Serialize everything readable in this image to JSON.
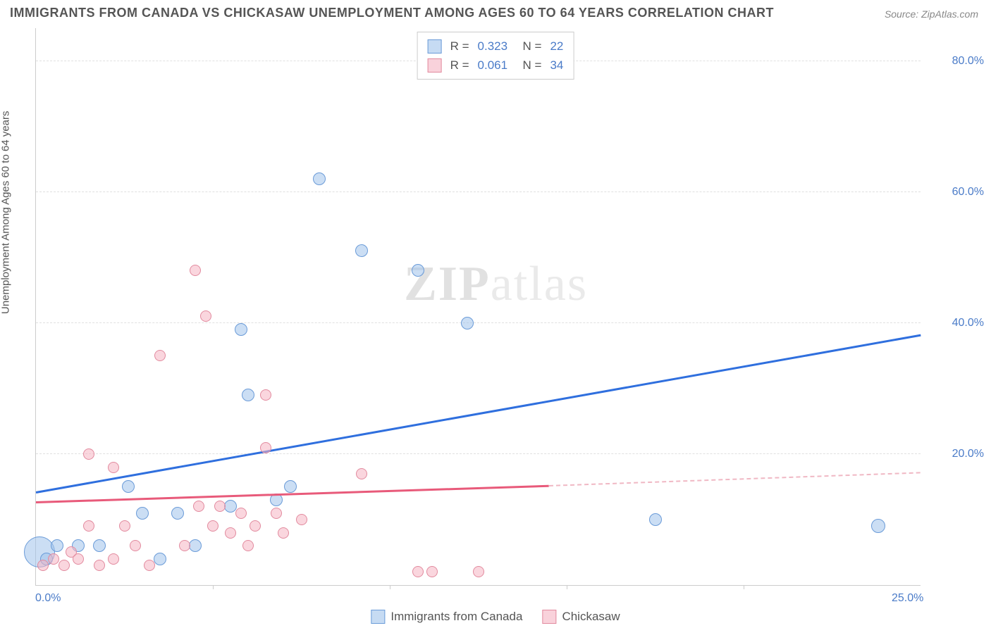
{
  "title": "IMMIGRANTS FROM CANADA VS CHICKASAW UNEMPLOYMENT AMONG AGES 60 TO 64 YEARS CORRELATION CHART",
  "source": "Source: ZipAtlas.com",
  "y_axis_label": "Unemployment Among Ages 60 to 64 years",
  "watermark_a": "ZIP",
  "watermark_b": "atlas",
  "chart": {
    "type": "scatter",
    "xlim": [
      0,
      25
    ],
    "ylim": [
      0,
      85
    ],
    "x_ticks_minor": [
      5,
      10,
      15,
      20
    ],
    "x_tick_labels": [
      {
        "v": 0,
        "label": "0.0%"
      },
      {
        "v": 25,
        "label": "25.0%"
      }
    ],
    "y_tick_labels": [
      {
        "v": 20,
        "label": "20.0%"
      },
      {
        "v": 40,
        "label": "40.0%"
      },
      {
        "v": 60,
        "label": "60.0%"
      },
      {
        "v": 80,
        "label": "80.0%"
      }
    ],
    "y_gridlines": [
      20,
      40,
      60,
      80
    ],
    "background_color": "#ffffff",
    "grid_color": "#e0e0e0",
    "series": [
      {
        "name": "Immigrants from Canada",
        "color_fill": "rgba(160,195,235,0.55)",
        "color_stroke": "#6a9bd8",
        "trend_color": "#2f6fde",
        "R": "0.323",
        "N": "22",
        "trend": {
          "x1": 0,
          "y1": 14,
          "x2": 25,
          "y2": 38
        },
        "points": [
          {
            "x": 0.1,
            "y": 5,
            "r": 22
          },
          {
            "x": 0.3,
            "y": 4,
            "r": 9
          },
          {
            "x": 0.6,
            "y": 6,
            "r": 9
          },
          {
            "x": 1.2,
            "y": 6,
            "r": 9
          },
          {
            "x": 1.8,
            "y": 6,
            "r": 9
          },
          {
            "x": 2.6,
            "y": 15,
            "r": 9
          },
          {
            "x": 3.0,
            "y": 11,
            "r": 9
          },
          {
            "x": 3.5,
            "y": 4,
            "r": 9
          },
          {
            "x": 4.0,
            "y": 11,
            "r": 9
          },
          {
            "x": 4.5,
            "y": 6,
            "r": 9
          },
          {
            "x": 5.5,
            "y": 12,
            "r": 9
          },
          {
            "x": 5.8,
            "y": 39,
            "r": 9
          },
          {
            "x": 6.0,
            "y": 29,
            "r": 9
          },
          {
            "x": 6.8,
            "y": 13,
            "r": 9
          },
          {
            "x": 7.2,
            "y": 15,
            "r": 9
          },
          {
            "x": 8.0,
            "y": 62,
            "r": 9
          },
          {
            "x": 9.2,
            "y": 51,
            "r": 9
          },
          {
            "x": 10.8,
            "y": 48,
            "r": 9
          },
          {
            "x": 12.2,
            "y": 40,
            "r": 9
          },
          {
            "x": 17.5,
            "y": 10,
            "r": 9
          },
          {
            "x": 23.8,
            "y": 9,
            "r": 10
          }
        ]
      },
      {
        "name": "Chickasaw",
        "color_fill": "rgba(245,180,195,0.55)",
        "color_stroke": "#e28a9e",
        "trend_color": "#e85a7a",
        "R": "0.061",
        "N": "34",
        "trend": {
          "x1": 0,
          "y1": 12.5,
          "x2": 14.5,
          "y2": 15
        },
        "trend_dash": {
          "x1": 14.5,
          "y1": 15,
          "x2": 25,
          "y2": 17
        },
        "points": [
          {
            "x": 0.2,
            "y": 3,
            "r": 8
          },
          {
            "x": 0.5,
            "y": 4,
            "r": 8
          },
          {
            "x": 0.8,
            "y": 3,
            "r": 8
          },
          {
            "x": 1.0,
            "y": 5,
            "r": 8
          },
          {
            "x": 1.2,
            "y": 4,
            "r": 8
          },
          {
            "x": 1.5,
            "y": 9,
            "r": 8
          },
          {
            "x": 1.8,
            "y": 3,
            "r": 8
          },
          {
            "x": 1.5,
            "y": 20,
            "r": 8
          },
          {
            "x": 2.2,
            "y": 4,
            "r": 8
          },
          {
            "x": 2.2,
            "y": 18,
            "r": 8
          },
          {
            "x": 2.5,
            "y": 9,
            "r": 8
          },
          {
            "x": 2.8,
            "y": 6,
            "r": 8
          },
          {
            "x": 3.2,
            "y": 3,
            "r": 8
          },
          {
            "x": 3.5,
            "y": 35,
            "r": 8
          },
          {
            "x": 4.2,
            "y": 6,
            "r": 8
          },
          {
            "x": 4.5,
            "y": 48,
            "r": 8
          },
          {
            "x": 4.6,
            "y": 12,
            "r": 8
          },
          {
            "x": 4.8,
            "y": 41,
            "r": 8
          },
          {
            "x": 5.0,
            "y": 9,
            "r": 8
          },
          {
            "x": 5.2,
            "y": 12,
            "r": 8
          },
          {
            "x": 5.5,
            "y": 8,
            "r": 8
          },
          {
            "x": 5.8,
            "y": 11,
            "r": 8
          },
          {
            "x": 6.0,
            "y": 6,
            "r": 8
          },
          {
            "x": 6.2,
            "y": 9,
            "r": 8
          },
          {
            "x": 6.5,
            "y": 29,
            "r": 8
          },
          {
            "x": 6.5,
            "y": 21,
            "r": 8
          },
          {
            "x": 6.8,
            "y": 11,
            "r": 8
          },
          {
            "x": 7.0,
            "y": 8,
            "r": 8
          },
          {
            "x": 7.5,
            "y": 10,
            "r": 8
          },
          {
            "x": 9.2,
            "y": 17,
            "r": 8
          },
          {
            "x": 10.8,
            "y": 2,
            "r": 8
          },
          {
            "x": 11.2,
            "y": 2,
            "r": 8
          },
          {
            "x": 12.5,
            "y": 2,
            "r": 8
          }
        ]
      }
    ]
  },
  "legend_bottom": [
    {
      "swatch": "blue",
      "label": "Immigrants from Canada"
    },
    {
      "swatch": "pink",
      "label": "Chickasaw"
    }
  ]
}
